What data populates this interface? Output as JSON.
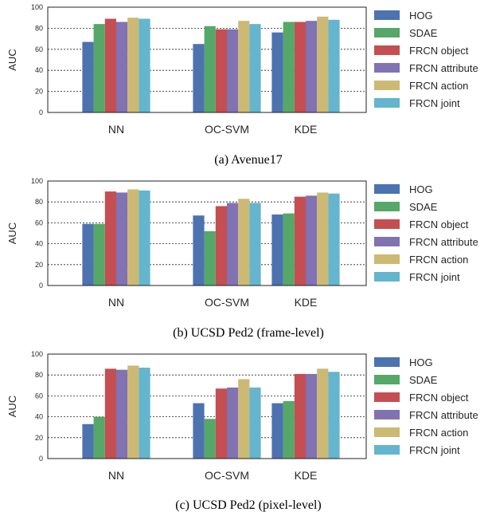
{
  "chart_data": [
    {
      "type": "bar",
      "caption": "(a) Avenue17",
      "ylabel": "AUC",
      "ylim": [
        0,
        100
      ],
      "yticks": [
        0,
        20,
        40,
        60,
        80,
        100
      ],
      "grid": true,
      "legend_position": "right",
      "categories": [
        "NN",
        "OC-SVM",
        "KDE"
      ],
      "series": [
        {
          "name": "HOG",
          "values": [
            67,
            65,
            76
          ]
        },
        {
          "name": "SDAE",
          "values": [
            84,
            82,
            86
          ]
        },
        {
          "name": "FRCN object",
          "values": [
            89,
            79,
            86
          ]
        },
        {
          "name": "FRCN attribute",
          "values": [
            86,
            79,
            87
          ]
        },
        {
          "name": "FRCN action",
          "values": [
            90,
            87,
            91
          ]
        },
        {
          "name": "FRCN joint",
          "values": [
            89,
            84,
            88
          ]
        }
      ]
    },
    {
      "type": "bar",
      "caption": "(b) UCSD Ped2 (frame-level)",
      "ylabel": "AUC",
      "ylim": [
        0,
        100
      ],
      "yticks": [
        0,
        20,
        40,
        60,
        80,
        100
      ],
      "grid": true,
      "legend_position": "right",
      "categories": [
        "NN",
        "OC-SVM",
        "KDE"
      ],
      "series": [
        {
          "name": "HOG",
          "values": [
            59,
            67,
            68
          ]
        },
        {
          "name": "SDAE",
          "values": [
            59,
            52,
            69
          ]
        },
        {
          "name": "FRCN object",
          "values": [
            90,
            76,
            85
          ]
        },
        {
          "name": "FRCN attribute",
          "values": [
            89,
            79,
            86
          ]
        },
        {
          "name": "FRCN action",
          "values": [
            92,
            83,
            89
          ]
        },
        {
          "name": "FRCN joint",
          "values": [
            91,
            79,
            88
          ]
        }
      ]
    },
    {
      "type": "bar",
      "caption": "(c) UCSD Ped2 (pixel-level)",
      "ylabel": "AUC",
      "ylim": [
        0,
        100
      ],
      "yticks": [
        0,
        20,
        40,
        60,
        80,
        100
      ],
      "grid": true,
      "legend_position": "right",
      "categories": [
        "NN",
        "OC-SVM",
        "KDE"
      ],
      "series": [
        {
          "name": "HOG",
          "values": [
            33,
            53,
            53
          ]
        },
        {
          "name": "SDAE",
          "values": [
            40,
            38,
            55
          ]
        },
        {
          "name": "FRCN object",
          "values": [
            86,
            67,
            81
          ]
        },
        {
          "name": "FRCN attribute",
          "values": [
            85,
            68,
            81
          ]
        },
        {
          "name": "FRCN action",
          "values": [
            89,
            76,
            86
          ]
        },
        {
          "name": "FRCN joint",
          "values": [
            87,
            68,
            83
          ]
        }
      ]
    }
  ],
  "colors": [
    "#4c72b0",
    "#55a868",
    "#c44e52",
    "#8172b2",
    "#ccb974",
    "#64b5cd"
  ]
}
